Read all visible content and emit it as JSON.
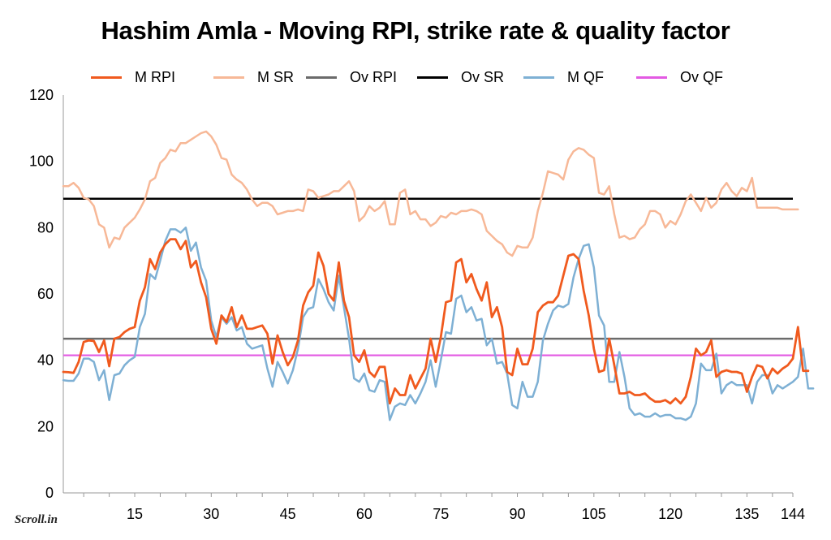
{
  "chart_data": {
    "type": "line",
    "title": "Hashim Amla - Moving RPI, strike rate & quality factor",
    "xlabel": "",
    "ylabel": "",
    "xlim": [
      1,
      144
    ],
    "ylim": [
      0,
      120
    ],
    "yticks": [
      0,
      20,
      40,
      60,
      80,
      100,
      120
    ],
    "xticks": [
      15,
      30,
      45,
      60,
      75,
      90,
      105,
      120,
      135,
      144
    ],
    "legend_position": "top",
    "grid": false,
    "colors": {
      "M RPI": "#f05a1e",
      "M SR": "#f7b897",
      "Ov RPI": "#6b6b6b",
      "Ov SR": "#000000",
      "M QF": "#7eb0d4",
      "Ov QF": "#e35ae3"
    },
    "series": [
      {
        "name": "M RPI",
        "x_start": 1,
        "values": [
          36.5,
          36.4,
          36.2,
          39.5,
          45.5,
          46,
          45.8,
          42.5,
          46,
          38.2,
          46.5,
          47,
          48.5,
          49.5,
          50,
          58,
          62,
          70.5,
          67.5,
          72.5,
          75,
          76.5,
          76.5,
          73.5,
          76,
          68,
          70,
          63.5,
          59,
          49.5,
          45,
          53.5,
          51.5,
          56,
          50,
          53.5,
          49.5,
          49.5,
          50,
          50.5,
          48,
          39,
          47.5,
          42.5,
          38.5,
          41,
          46,
          56.5,
          60.5,
          62.5,
          72.5,
          68.5,
          60,
          58,
          69.5,
          58,
          53,
          41.5,
          39.5,
          43,
          36.5,
          35,
          38,
          38,
          27,
          31.5,
          29.5,
          29.5,
          35.5,
          31.5,
          34.5,
          37.5,
          46.5,
          39.5,
          47,
          57.5,
          58,
          69.5,
          70.5,
          63.5,
          66,
          61.5,
          58,
          63.5,
          53,
          56,
          50,
          36.5,
          35.5,
          43.5,
          38.8,
          38.8,
          43.5,
          54.5,
          56.5,
          57.5,
          57.5,
          59.5,
          65.5,
          71.5,
          72,
          70.5,
          61,
          53.5,
          43.5,
          36.5,
          37,
          46.5,
          38.5,
          30,
          30,
          30.5,
          29.5,
          29.5,
          30,
          28.5,
          27.5,
          27.5,
          28,
          27,
          28.5,
          27,
          29,
          35,
          43.5,
          41.5,
          42.5,
          46,
          35,
          36.5,
          37,
          36.5,
          36.5,
          36,
          30.5,
          35,
          38.5,
          38,
          34.5,
          37.5,
          36,
          37.5,
          38.5,
          40.5,
          50,
          36.8,
          36.8
        ]
      },
      {
        "name": "M SR",
        "x_start": 1,
        "values": [
          92.5,
          92.5,
          93.5,
          92,
          89,
          88.5,
          86.5,
          81,
          80,
          74,
          77,
          76.5,
          80,
          81.5,
          83,
          85.5,
          88.5,
          94,
          95,
          99.5,
          101,
          103.5,
          103,
          105.5,
          105.5,
          106.5,
          107.5,
          108.5,
          109,
          107.5,
          105,
          101,
          100.5,
          96,
          94.5,
          93.5,
          91.5,
          88.5,
          86.5,
          87.5,
          87.5,
          86.5,
          84,
          84.5,
          85,
          85,
          85.5,
          85,
          91.5,
          91,
          89,
          89.5,
          90,
          91,
          91,
          92.5,
          94,
          91,
          82,
          83.5,
          86.5,
          85,
          86,
          88,
          81,
          81,
          90.5,
          91.5,
          84,
          85,
          82.5,
          82.5,
          80.5,
          81.5,
          83.5,
          83,
          84.5,
          84,
          85,
          85,
          85.5,
          85,
          84,
          79,
          77.5,
          76,
          75,
          72.5,
          71.5,
          74.5,
          74,
          74,
          77,
          85,
          90.5,
          97,
          96.5,
          96,
          94.5,
          100.5,
          103,
          104,
          103.5,
          102,
          101,
          90.5,
          90,
          92.5,
          84,
          77,
          77.5,
          76.5,
          77,
          79.5,
          81,
          85,
          85,
          84,
          80,
          82,
          81,
          84,
          88,
          90,
          87.5,
          85,
          89,
          86,
          87.5,
          91.5,
          93.5,
          91,
          89.5,
          92,
          91,
          95,
          86,
          86,
          86,
          86,
          86,
          85.5,
          85.5,
          85.5,
          85.5
        ]
      },
      {
        "name": "M QF",
        "x_start": 1,
        "values": [
          34,
          33.8,
          33.8,
          36,
          40.5,
          40.5,
          39.5,
          34,
          37,
          28,
          35.5,
          36,
          38.5,
          40,
          41,
          50,
          54,
          66,
          64.5,
          70,
          76,
          79.5,
          79.5,
          78.5,
          80,
          73,
          75.5,
          68,
          64,
          52,
          47,
          53,
          51,
          53,
          49,
          50,
          45,
          43.5,
          44,
          44.5,
          37.5,
          32,
          39.5,
          36.5,
          33,
          37,
          43.5,
          53,
          55.5,
          56,
          64.5,
          61.5,
          57.5,
          55,
          65.5,
          56,
          46.5,
          34.5,
          33.5,
          36,
          31,
          30.5,
          34,
          33.5,
          22,
          26,
          27,
          26.5,
          29.5,
          27,
          30,
          33.5,
          40,
          32,
          40,
          48.5,
          48,
          58.5,
          59.5,
          54.5,
          56,
          52,
          52.5,
          44.5,
          46.5,
          39,
          39.5,
          36,
          26.5,
          25.5,
          33.5,
          29,
          29,
          33.5,
          46,
          51,
          55,
          56.5,
          56,
          57,
          65,
          70.5,
          74.5,
          75,
          68,
          53.5,
          50.5,
          33.5,
          33.5,
          42.5,
          35,
          25.5,
          23.5,
          24,
          23,
          23,
          24,
          23,
          23.5,
          23.5,
          22.5,
          22.5,
          22,
          23,
          27,
          39,
          37,
          37,
          42,
          30,
          32.5,
          33.5,
          32.5,
          32.5,
          32.5,
          27,
          33.5,
          35.5,
          35.5,
          30,
          32.5,
          31.5,
          32.5,
          33.5,
          35,
          43.5,
          31.5,
          31.5
        ]
      },
      {
        "name": "Ov RPI",
        "value": 46.5
      },
      {
        "name": "Ov SR",
        "value": 88.7
      },
      {
        "name": "Ov QF",
        "value": 41.5
      }
    ]
  },
  "branding": {
    "logo_text": "Scroll.in"
  }
}
